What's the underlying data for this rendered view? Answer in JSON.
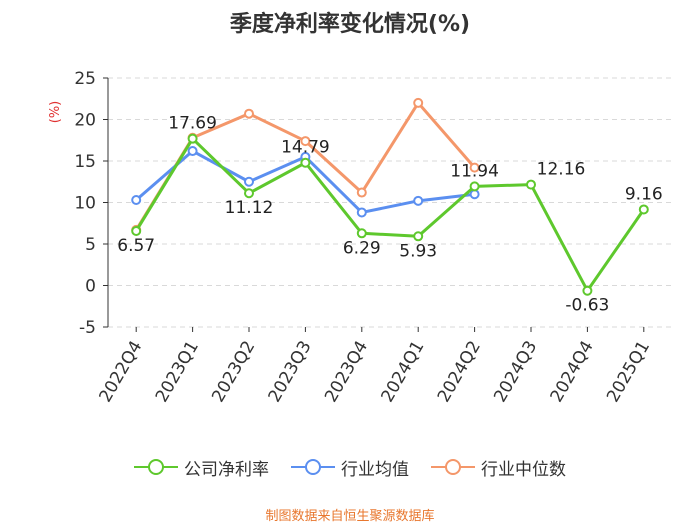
{
  "chart_data": {
    "type": "line",
    "title": "季度净利率变化情况(%)",
    "ylabel": "(%)",
    "xlabel": "",
    "ylim": [
      -5,
      25
    ],
    "yticks": [
      -5,
      0,
      5,
      10,
      15,
      20,
      25
    ],
    "grid": true,
    "legend_position": "bottom",
    "categories": [
      "2022Q4",
      "2023Q1",
      "2023Q2",
      "2023Q3",
      "2023Q4",
      "2024Q1",
      "2024Q2",
      "2024Q3",
      "2024Q4",
      "2025Q1"
    ],
    "series": [
      {
        "name": "公司净利率",
        "color": "#5ec82d",
        "values": [
          6.57,
          17.69,
          11.12,
          14.79,
          6.29,
          5.93,
          11.94,
          12.16,
          -0.63,
          9.16
        ],
        "labels": [
          "6.57",
          "17.69",
          "11.12",
          "14.79",
          "6.29",
          "5.93",
          "11.94",
          "12.16",
          "-0.63",
          "9.16"
        ]
      },
      {
        "name": "行业均值",
        "color": "#5b8ff0",
        "values": [
          10.3,
          16.2,
          12.5,
          15.5,
          8.8,
          10.2,
          11.0,
          null,
          null,
          null
        ]
      },
      {
        "name": "行业中位数",
        "color": "#f4976a",
        "values": [
          6.7,
          17.8,
          20.7,
          17.4,
          11.2,
          22.0,
          14.2,
          null,
          null,
          null
        ]
      }
    ]
  },
  "source": "制图数据来自恒生聚源数据库"
}
